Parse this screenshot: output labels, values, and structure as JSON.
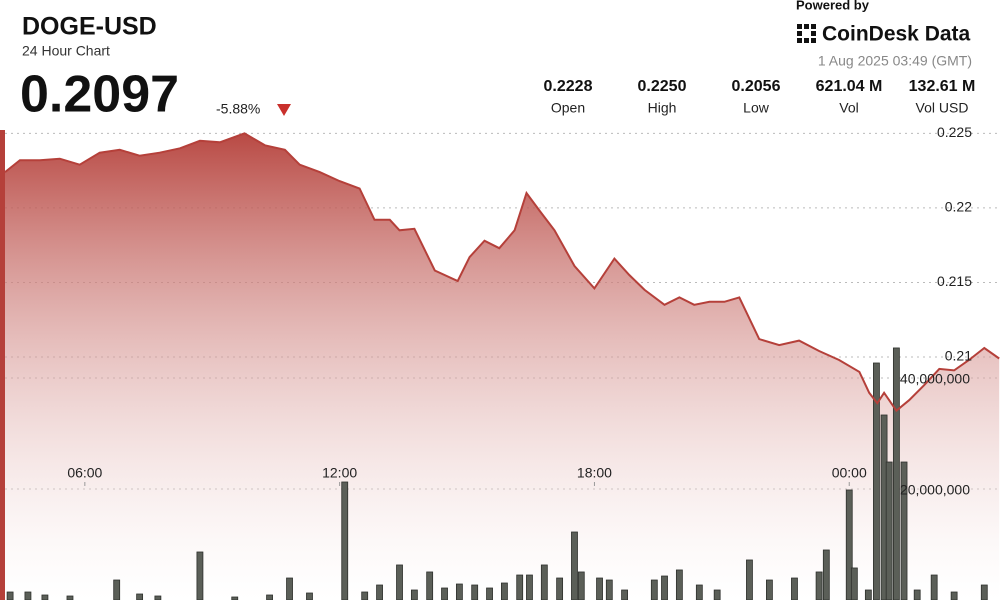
{
  "header": {
    "title": "DOGE-USD",
    "subtitle": "24 Hour Chart",
    "price": "0.2097",
    "change": "-5.88%",
    "powered_by": "Powered by",
    "brand": "CoinDesk Data",
    "timestamp": "1 Aug 2025 03:49 (GMT)",
    "stats": [
      {
        "value": "0.2228",
        "label": "Open"
      },
      {
        "value": "0.2250",
        "label": "High"
      },
      {
        "value": "0.2056",
        "label": "Low"
      },
      {
        "value": "621.04 M",
        "label": "Vol"
      },
      {
        "value": "132.61 M",
        "label": "Vol USD"
      }
    ]
  },
  "chart_data": {
    "type": "line",
    "xlim": [
      4.12,
      27.55
    ],
    "xticks": [
      {
        "value": 6,
        "label": "06:00"
      },
      {
        "value": 12,
        "label": "12:00"
      },
      {
        "value": 18,
        "label": "18:00"
      },
      {
        "value": 24,
        "label": "00:00"
      }
    ],
    "ylim": [
      0.1937,
      0.2265
    ],
    "yticks": [
      0.21,
      0.215,
      0.22,
      0.225
    ],
    "y2lim": [
      0,
      88100000
    ],
    "y2ticks": [
      {
        "value": 20000000,
        "label": "20,000,000"
      },
      {
        "value": 40000000,
        "label": "40,000,000"
      }
    ],
    "grid": true,
    "series": [
      {
        "type": "area",
        "color": "#b5403a",
        "x": [
          4.12,
          4.47,
          4.94,
          5.41,
          5.88,
          6.35,
          6.82,
          7.29,
          7.76,
          8.24,
          8.71,
          9.18,
          9.76,
          10.24,
          10.71,
          11.06,
          11.53,
          12.0,
          12.47,
          12.82,
          13.18,
          13.41,
          13.76,
          14.24,
          14.78,
          15.06,
          15.41,
          15.76,
          16.12,
          16.4,
          16.71,
          17.06,
          17.53,
          18.0,
          18.47,
          18.82,
          19.18,
          19.65,
          20.0,
          20.35,
          20.71,
          21.06,
          21.41,
          21.88,
          22.35,
          22.82,
          23.29,
          23.76,
          24.24,
          24.47,
          24.66,
          24.82,
          25.11,
          25.41,
          25.76,
          26.12,
          26.47,
          26.82,
          27.18,
          27.53
        ],
        "values": [
          0.2224,
          0.2232,
          0.2232,
          0.2233,
          0.2229,
          0.2237,
          0.2239,
          0.2235,
          0.2237,
          0.224,
          0.2245,
          0.2244,
          0.225,
          0.2242,
          0.2239,
          0.2229,
          0.2224,
          0.2218,
          0.2213,
          0.2192,
          0.2192,
          0.2185,
          0.2186,
          0.2158,
          0.2151,
          0.2167,
          0.2178,
          0.2173,
          0.2185,
          0.221,
          0.2198,
          0.2185,
          0.2161,
          0.2146,
          0.2166,
          0.2155,
          0.2145,
          0.2135,
          0.214,
          0.2135,
          0.2137,
          0.2137,
          0.214,
          0.2112,
          0.2108,
          0.2111,
          0.2104,
          0.2098,
          0.209,
          0.2076,
          0.2069,
          0.2076,
          0.2064,
          0.2071,
          0.2081,
          0.2092,
          0.2091,
          0.2098,
          0.2106,
          0.2099
        ]
      },
      {
        "type": "bar",
        "axis": "y2",
        "color": "#5b5f58",
        "x": [
          4.24,
          4.66,
          5.06,
          5.65,
          6.75,
          7.29,
          7.72,
          8.71,
          9.53,
          10.35,
          10.82,
          11.29,
          12.12,
          12.59,
          12.94,
          13.41,
          13.76,
          14.12,
          14.47,
          14.82,
          15.18,
          15.53,
          15.88,
          16.24,
          16.47,
          16.82,
          17.18,
          17.53,
          17.69,
          18.12,
          18.35,
          18.71,
          19.41,
          19.65,
          20.0,
          20.47,
          20.89,
          21.65,
          22.12,
          22.71,
          23.29,
          23.46,
          24.0,
          24.12,
          24.45,
          24.64,
          24.82,
          24.94,
          25.11,
          25.29,
          25.6,
          26.0,
          26.47,
          27.18
        ],
        "values": [
          1440000,
          1440000,
          900000,
          720000,
          3600000,
          1080000,
          720000,
          8650000,
          540000,
          900000,
          3960000,
          1260000,
          21260000,
          1440000,
          2700000,
          6310000,
          1800000,
          5050000,
          2160000,
          2880000,
          2700000,
          2160000,
          3060000,
          4500000,
          4500000,
          6310000,
          3960000,
          12250000,
          5050000,
          3960000,
          3600000,
          1800000,
          3600000,
          4320000,
          5410000,
          2700000,
          1800000,
          7210000,
          3600000,
          3960000,
          5050000,
          9010000,
          19820000,
          5770000,
          1800000,
          42700000,
          33330000,
          24860000,
          45410000,
          24860000,
          1800000,
          4500000,
          1440000,
          2700000
        ]
      }
    ]
  }
}
